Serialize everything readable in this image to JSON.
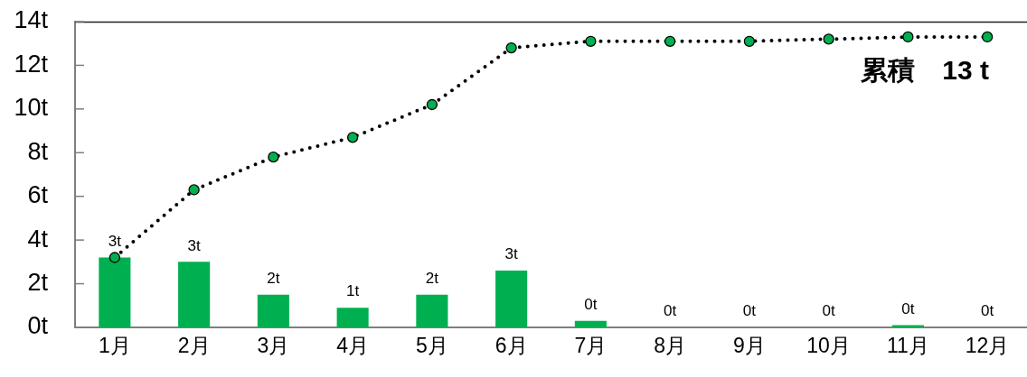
{
  "chart_data": {
    "type": "bar",
    "categories": [
      "1月",
      "2月",
      "3月",
      "4月",
      "5月",
      "6月",
      "7月",
      "8月",
      "9月",
      "10月",
      "11月",
      "12月"
    ],
    "ylim": [
      0,
      14
    ],
    "yticks": [
      {
        "value": 0,
        "label": "0t"
      },
      {
        "value": 2,
        "label": "2t"
      },
      {
        "value": 4,
        "label": "4t"
      },
      {
        "value": 6,
        "label": "6t"
      },
      {
        "value": 8,
        "label": "8t"
      },
      {
        "value": 10,
        "label": "10t"
      },
      {
        "value": 12,
        "label": "12t"
      },
      {
        "value": 14,
        "label": "14t"
      }
    ],
    "series": [
      {
        "color": "#00b050",
        "values": [
          3.2,
          3.0,
          1.5,
          0.9,
          1.5,
          2.6,
          0.3,
          0,
          0,
          0,
          0.1,
          0
        ],
        "value_labels": [
          "3t",
          "3t",
          "2t",
          "1t",
          "2t",
          "3t",
          "0t",
          "0t",
          "0t",
          "0t",
          "0t",
          "0t"
        ]
      },
      {
        "type": "line",
        "color": "#000000",
        "colors": [
          "#00b050",
          "#00b050",
          "#00b050",
          "#00b050",
          "#00b050",
          "#00b050",
          "#00b050",
          "#00b050",
          "#00b050",
          "#00b050",
          "#00b050",
          "#00b050"
        ],
        "values": [
          3.2,
          6.3,
          7.8,
          8.7,
          10.2,
          12.8,
          13.1,
          13.1,
          13.1,
          13.2,
          13.3,
          13.3
        ],
        "line_style": "dotted",
        "marker": "circle"
      }
    ],
    "annotations": [
      "累積　13 t"
    ],
    "grid": false,
    "legend": false
  }
}
